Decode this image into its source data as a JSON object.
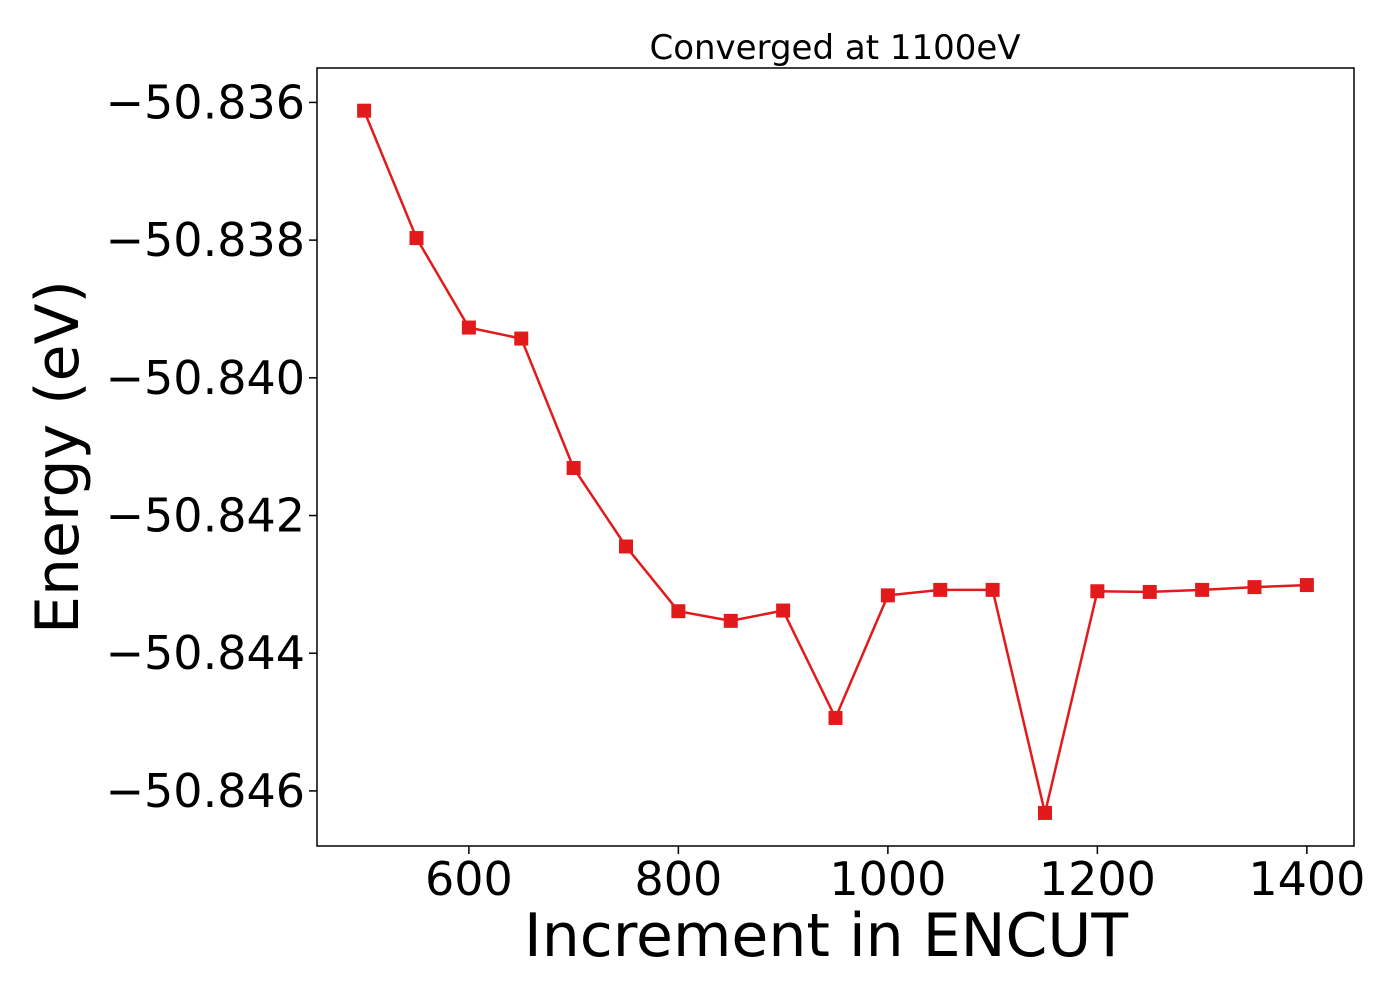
{
  "chart_data": {
    "type": "line",
    "title": "Converged at 1100eV",
    "xlabel": "Increment in ENCUT",
    "ylabel": "Energy (eV)",
    "xlim": [
      455,
      1445
    ],
    "ylim": [
      -50.8468,
      -50.8355
    ],
    "xticks": [
      600,
      800,
      1000,
      1200,
      1400
    ],
    "xtick_labels": [
      "600",
      "800",
      "1000",
      "1200",
      "1400"
    ],
    "yticks": [
      -50.836,
      -50.838,
      -50.84,
      -50.842,
      -50.844,
      -50.846
    ],
    "ytick_labels": [
      "−50.836",
      "−50.838",
      "−50.840",
      "−50.842",
      "−50.844",
      "−50.846"
    ],
    "grid": false,
    "marker": "square",
    "series": [
      {
        "color": "#e31a1c",
        "x": [
          500,
          550,
          600,
          650,
          700,
          750,
          800,
          850,
          900,
          950,
          1000,
          1050,
          1100,
          1150,
          1200,
          1250,
          1300,
          1350,
          1400
        ],
        "y": [
          -50.83612,
          -50.83797,
          -50.83927,
          -50.83943,
          -50.84131,
          -50.84245,
          -50.84339,
          -50.84353,
          -50.84338,
          -50.84494,
          -50.84316,
          -50.84308,
          -50.84308,
          -50.84632,
          -50.8431,
          -50.84311,
          -50.84308,
          -50.84304,
          -50.84301
        ]
      }
    ]
  }
}
